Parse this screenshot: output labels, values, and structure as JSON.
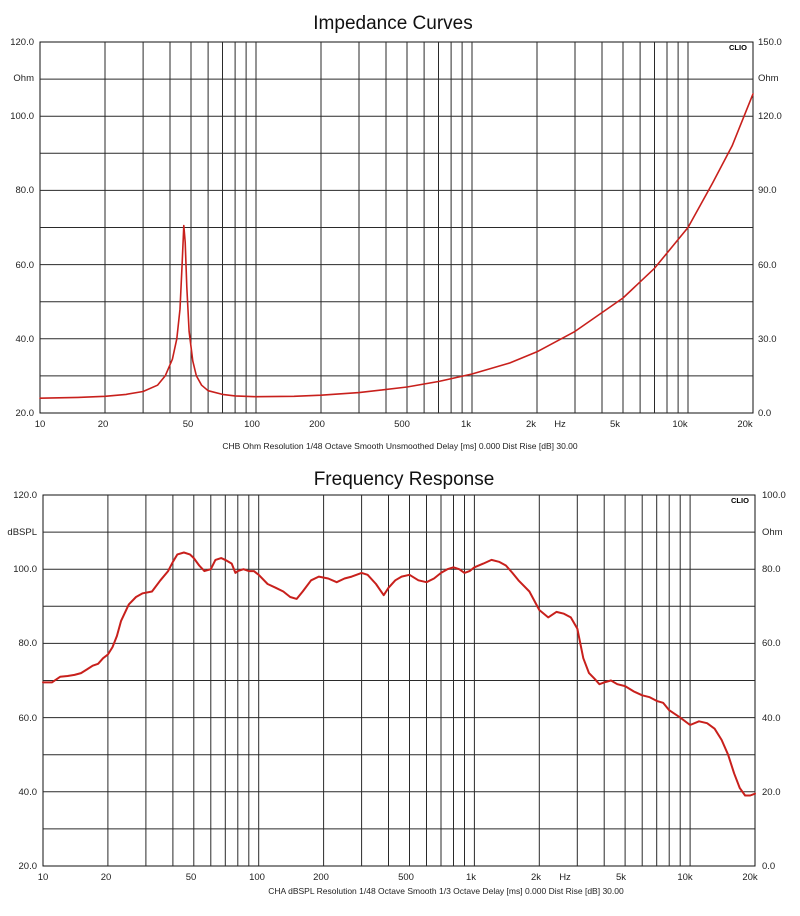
{
  "charts": [
    {
      "title": "Impedance Curves",
      "brand": "CLIO",
      "left_unit": "Ohm",
      "right_unit": "Ohm",
      "caption": "CHB Ohm Resolution 1/48 Octave Smooth Unsmoothed Delay [ms] 0.000 Dist Rise [dB] 30.00",
      "left_ticks": [
        "120.0",
        "100.0",
        "80.0",
        "60.0",
        "40.0",
        "20.0"
      ],
      "right_ticks": [
        "150.0",
        "120.0",
        "90.0",
        "60.0",
        "30.0",
        "0.0"
      ],
      "x_ticks": [
        "10",
        "20",
        "50",
        "100",
        "200",
        "500",
        "1k",
        "2k",
        "Hz",
        "5k",
        "10k",
        "20k"
      ]
    },
    {
      "title": "Frequency Response",
      "brand": "CLIO",
      "left_unit": "dBSPL",
      "right_unit": "Ohm",
      "caption": "CHA dBSPL Resolution 1/48 Octave Smooth 1/3 Octave Delay [ms] 0.000 Dist Rise [dB] 30.00",
      "left_ticks": [
        "120.0",
        "100.0",
        "80.0",
        "60.0",
        "40.0",
        "20.0"
      ],
      "right_ticks": [
        "100.0",
        "80.0",
        "60.0",
        "40.0",
        "20.0",
        "0.0"
      ],
      "x_ticks": [
        "10",
        "20",
        "50",
        "100",
        "200",
        "500",
        "1k",
        "2k",
        "Hz",
        "5k",
        "10k",
        "20k"
      ]
    }
  ],
  "chart_data": [
    {
      "type": "line",
      "title": "Impedance Curves",
      "x_scale": "log",
      "xlim": [
        10,
        20000
      ],
      "ylim": [
        20,
        120
      ],
      "y2lim": [
        0,
        150
      ],
      "ylabel": "Ohm",
      "y2label": "Ohm",
      "xunit": "Hz",
      "grid": true,
      "color": "#c8201c",
      "series": [
        {
          "x": [
            10,
            15,
            20,
            25,
            30,
            35,
            38,
            41,
            43,
            44.5,
            45.5,
            46.3,
            47,
            47.8,
            49,
            51,
            53,
            56,
            60,
            70,
            80,
            100,
            150,
            200,
            300,
            500,
            700,
            1000,
            1500,
            2000,
            3000,
            5000,
            7000,
            10000,
            13000,
            16000,
            20000
          ],
          "y": [
            24,
            24.2,
            24.5,
            25,
            25.8,
            27.5,
            30,
            34.5,
            40,
            48,
            60,
            70.5,
            66,
            54,
            42,
            34,
            30,
            27.5,
            26,
            25,
            24.6,
            24.4,
            24.5,
            24.8,
            25.5,
            27,
            28.5,
            30.5,
            33.5,
            36.5,
            42,
            51,
            59,
            70,
            82,
            92,
            106
          ]
        }
      ]
    },
    {
      "type": "line",
      "title": "Frequency Response",
      "x_scale": "log",
      "xlim": [
        10,
        20000
      ],
      "ylim": [
        20,
        120
      ],
      "y2lim": [
        0,
        100
      ],
      "ylabel": "dBSPL",
      "y2label": "Ohm",
      "xunit": "Hz",
      "grid": true,
      "color": "#c8201c",
      "series": [
        {
          "x": [
            10,
            11,
            12,
            13,
            14,
            15,
            16,
            17,
            18,
            19,
            20,
            21,
            22,
            23,
            25,
            27,
            29,
            32,
            35,
            38,
            40,
            42,
            45,
            48,
            50,
            53,
            56,
            60,
            63,
            67,
            70,
            75,
            78,
            80,
            85,
            90,
            95,
            100,
            110,
            120,
            130,
            140,
            150,
            160,
            175,
            190,
            210,
            230,
            250,
            270,
            300,
            320,
            350,
            380,
            400,
            430,
            460,
            500,
            550,
            600,
            650,
            700,
            750,
            800,
            850,
            900,
            950,
            1000,
            1100,
            1200,
            1300,
            1400,
            1500,
            1600,
            1800,
            2000,
            2200,
            2400,
            2600,
            2800,
            3000,
            3200,
            3400,
            3600,
            3800,
            4000,
            4300,
            4600,
            5000,
            5500,
            6000,
            6500,
            7000,
            7500,
            8000,
            9000,
            10000,
            11000,
            12000,
            13000,
            14000,
            15000,
            16000,
            17000,
            18000,
            19000,
            20000
          ],
          "y": [
            69.5,
            69.5,
            71,
            71.2,
            71.5,
            72,
            73,
            74,
            74.5,
            76,
            77,
            79,
            82,
            86,
            90.5,
            92.5,
            93.5,
            94,
            97,
            99.5,
            102,
            104,
            104.5,
            104,
            103,
            101,
            99.5,
            100,
            102.5,
            103,
            102.5,
            101.5,
            99,
            99.5,
            100,
            99.5,
            99.5,
            98.5,
            96,
            95,
            94,
            92.5,
            92,
            94,
            97,
            98,
            97.5,
            96.5,
            97.5,
            98,
            99,
            98.5,
            96,
            93,
            95,
            97,
            98,
            98.5,
            97,
            96.5,
            97.5,
            99,
            100,
            100.5,
            100,
            99,
            99.5,
            100.5,
            101.5,
            102.5,
            102,
            101,
            99,
            97,
            94,
            89,
            87,
            88.5,
            88,
            87,
            84,
            76,
            72,
            70.5,
            69,
            69.5,
            70,
            69,
            68.5,
            67,
            66,
            65.5,
            64.5,
            64,
            62,
            60,
            58,
            59,
            58.5,
            57,
            54,
            50,
            45,
            41,
            39,
            39,
            39.5
          ]
        }
      ]
    }
  ]
}
